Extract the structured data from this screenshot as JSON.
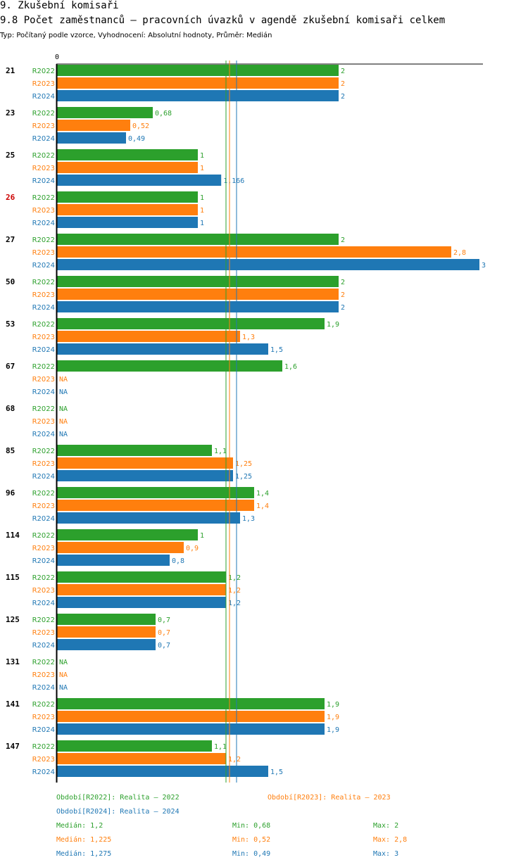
{
  "header": {
    "title": "9. Zkušební komisaři",
    "chart_title": "9.8 Počet zaměstnanců – pracovních úvazků v agendě zkušební komisaři celkem",
    "subtitle": "Typ: Počítaný podle vzorce, Vyhodnocení: Absolutní hodnoty, Průměr: Medián"
  },
  "colors": {
    "R2022": "#2ca02c",
    "R2023": "#ff7f0e",
    "R2024": "#1f77b4",
    "highlight": "#cc0000",
    "axis": "#000000"
  },
  "chart_data": {
    "type": "bar",
    "orientation": "horizontal",
    "axis_zero_label": "0",
    "xlim": [
      0,
      3
    ],
    "series_names": [
      "R2022",
      "R2023",
      "R2024"
    ],
    "categories": [
      "21",
      "23",
      "25",
      "26",
      "27",
      "50",
      "53",
      "67",
      "68",
      "85",
      "96",
      "114",
      "115",
      "125",
      "131",
      "141",
      "147"
    ],
    "highlighted_category": "26",
    "na_label": "NA",
    "series": [
      {
        "name": "R2022",
        "values": [
          2,
          0.68,
          1,
          1,
          2,
          2,
          1.9,
          1.6,
          null,
          1.1,
          1.4,
          1,
          1.2,
          0.7,
          null,
          1.9,
          1.1
        ],
        "labels": [
          "2",
          "0,68",
          "1",
          "1",
          "2",
          "2",
          "1,9",
          "1,6",
          "NA",
          "1,1",
          "1,4",
          "1",
          "1,2",
          "0,7",
          "NA",
          "1,9",
          "1,1"
        ]
      },
      {
        "name": "R2023",
        "values": [
          2,
          0.52,
          1,
          1,
          2.8,
          2,
          1.3,
          null,
          null,
          1.25,
          1.4,
          0.9,
          1.2,
          0.7,
          null,
          1.9,
          1.2
        ],
        "labels": [
          "2",
          "0,52",
          "1",
          "1",
          "2,8",
          "2",
          "1,3",
          "NA",
          "NA",
          "1,25",
          "1,4",
          "0,9",
          "1,2",
          "0,7",
          "NA",
          "1,9",
          "1,2"
        ]
      },
      {
        "name": "R2024",
        "values": [
          2,
          0.49,
          1.166,
          1,
          3,
          2,
          1.5,
          null,
          null,
          1.25,
          1.3,
          0.8,
          1.2,
          0.7,
          null,
          1.9,
          1.5
        ],
        "labels": [
          "2",
          "0,49",
          "1,166",
          "1",
          "3",
          "2",
          "1,5",
          "NA",
          "NA",
          "1,25",
          "1,3",
          "0,8",
          "1,2",
          "0,7",
          "NA",
          "1,9",
          "1,5"
        ]
      }
    ],
    "reference_lines": [
      {
        "series": "R2022",
        "value": 1.2
      },
      {
        "series": "R2023",
        "value": 1.225
      },
      {
        "series": "R2024",
        "value": 1.275
      }
    ]
  },
  "legend": {
    "periods": [
      {
        "series": "R2022",
        "text": "Období[R2022]: Realita – 2022"
      },
      {
        "series": "R2023",
        "text": "Období[R2023]: Realita – 2023"
      },
      {
        "series": "R2024",
        "text": "Období[R2024]: Realita – 2024"
      }
    ],
    "stats": [
      {
        "series": "R2022",
        "median": "Medián: 1,2",
        "min": "Min: 0,68",
        "max": "Max: 2"
      },
      {
        "series": "R2023",
        "median": "Medián: 1,225",
        "min": "Min: 0,52",
        "max": "Max: 2,8"
      },
      {
        "series": "R2024",
        "median": "Medián: 1,275",
        "min": "Min: 0,49",
        "max": "Max: 3"
      }
    ]
  }
}
